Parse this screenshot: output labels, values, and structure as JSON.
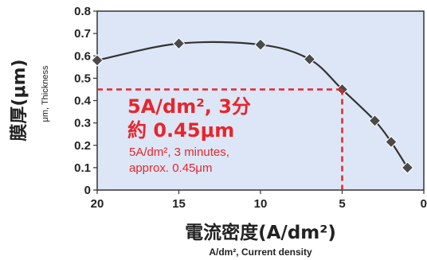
{
  "chart_data": {
    "type": "line",
    "ylabel": "膜厚(μm)",
    "ylabel_sub": "μm, Thickness",
    "xlabel": "電流密度(A/dm²)",
    "xlabel_sub": "A/dm², Current density",
    "x_ticks": [
      "20",
      "15",
      "10",
      "5",
      "0"
    ],
    "y_ticks": [
      "0",
      "0.1",
      "0.2",
      "0.3",
      "0.4",
      "0.5",
      "0.6",
      "0.7",
      "0.8"
    ],
    "xlim": [
      0,
      20
    ],
    "x_reversed": true,
    "ylim": [
      0,
      0.8
    ],
    "grid": false,
    "series": [
      {
        "x": [
          20,
          15,
          10,
          7,
          5,
          3,
          2,
          1
        ],
        "y": [
          0.58,
          0.655,
          0.65,
          0.585,
          0.45,
          0.31,
          0.215,
          0.1
        ]
      }
    ],
    "annotation": {
      "x": 5,
      "y": 0.45,
      "line1": "5A/dm², 3分",
      "line2": "約 0.45μm",
      "line3": "5A/dm², 3 minutes,",
      "line4": "approx. 0.45μm"
    },
    "colors": {
      "plot_background": "#dde6f6",
      "curve": "#333333",
      "marker": "#4a4a4a",
      "highlight": "#e8252b"
    }
  }
}
